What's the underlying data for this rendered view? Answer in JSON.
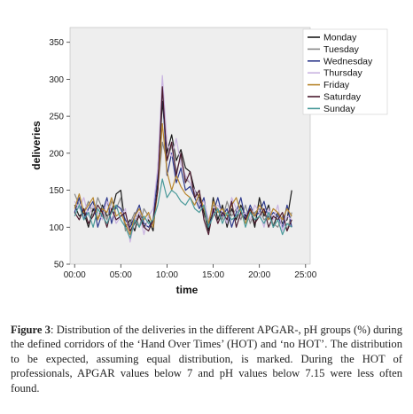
{
  "chart_data": {
    "type": "line",
    "xlabel": "time",
    "ylabel": "deliveries",
    "x_ticks": [
      "00:00",
      "05:00",
      "10:00",
      "15:00",
      "20:00",
      "25:00"
    ],
    "y_ticks": [
      "50",
      "100",
      "150",
      "200",
      "250",
      "300",
      "350"
    ],
    "ylim": [
      50,
      370
    ],
    "xlim": [
      -0.5,
      25.5
    ],
    "legend_position": "right",
    "grid": false,
    "x": [
      0,
      0.5,
      1,
      1.5,
      2,
      2.5,
      3,
      3.5,
      4,
      4.5,
      5,
      5.5,
      6,
      6.5,
      7,
      7.5,
      8,
      8.5,
      9,
      9.5,
      10,
      10.5,
      11,
      11.5,
      12,
      12.5,
      13,
      13.5,
      14,
      14.5,
      15,
      15.5,
      16,
      16.5,
      17,
      17.5,
      18,
      18.5,
      19,
      19.5,
      20,
      20.5,
      21,
      21.5,
      22,
      22.5,
      23,
      23.5
    ],
    "series": [
      {
        "name": "Monday",
        "color": "#1a1a1a",
        "values": [
          130,
          115,
          120,
          100,
          125,
          110,
          130,
          115,
          120,
          145,
          150,
          100,
          110,
          95,
          120,
          100,
          110,
          95,
          160,
          270,
          200,
          225,
          190,
          205,
          180,
          175,
          150,
          140,
          120,
          95,
          140,
          110,
          130,
          100,
          125,
          110,
          130,
          115,
          125,
          100,
          140,
          115,
          130,
          100,
          120,
          105,
          110,
          150
        ]
      },
      {
        "name": "Tuesday",
        "color": "#888888",
        "values": [
          145,
          130,
          120,
          135,
          115,
          140,
          125,
          110,
          135,
          125,
          140,
          95,
          105,
          120,
          100,
          125,
          115,
          105,
          150,
          215,
          190,
          210,
          175,
          195,
          165,
          160,
          145,
          135,
          115,
          105,
          130,
          125,
          110,
          135,
          115,
          125,
          110,
          130,
          105,
          120,
          125,
          110,
          115,
          105,
          100,
          115,
          95,
          120
        ]
      },
      {
        "name": "Wednesday",
        "color": "#2e3a8c",
        "values": [
          120,
          140,
          110,
          125,
          135,
          100,
          120,
          140,
          105,
          130,
          125,
          110,
          100,
          115,
          130,
          105,
          100,
          110,
          175,
          290,
          170,
          200,
          160,
          180,
          150,
          155,
          140,
          125,
          140,
          100,
          120,
          140,
          115,
          125,
          100,
          120,
          140,
          110,
          130,
          115,
          120,
          135,
          110,
          120,
          115,
          100,
          130,
          100
        ]
      },
      {
        "name": "Thursday",
        "color": "#c9b3e0",
        "values": [
          135,
          125,
          140,
          115,
          130,
          120,
          110,
          135,
          125,
          105,
          115,
          125,
          80,
          110,
          120,
          90,
          115,
          125,
          180,
          305,
          215,
          195,
          220,
          185,
          170,
          160,
          150,
          130,
          135,
          110,
          125,
          130,
          120,
          105,
          140,
          125,
          115,
          120,
          110,
          130,
          120,
          100,
          125,
          110,
          130,
          95,
          115,
          110
        ]
      },
      {
        "name": "Friday",
        "color": "#b8862e",
        "values": [
          125,
          145,
          120,
          130,
          140,
          110,
          125,
          120,
          140,
          115,
          120,
          105,
          90,
          115,
          125,
          110,
          120,
          100,
          150,
          240,
          175,
          150,
          170,
          155,
          145,
          140,
          130,
          145,
          125,
          105,
          135,
          120,
          125,
          115,
          130,
          140,
          120,
          105,
          125,
          115,
          130,
          120,
          110,
          125,
          120,
          110,
          125,
          115
        ]
      },
      {
        "name": "Saturday",
        "color": "#4a1a2e",
        "values": [
          120,
          110,
          125,
          105,
          115,
          130,
          120,
          100,
          125,
          110,
          115,
          120,
          95,
          105,
          115,
          100,
          95,
          110,
          150,
          290,
          190,
          215,
          170,
          200,
          160,
          175,
          140,
          150,
          110,
          90,
          125,
          105,
          120,
          110,
          135,
          100,
          120,
          110,
          125,
          105,
          115,
          125,
          100,
          115,
          110,
          120,
          95,
          110
        ]
      },
      {
        "name": "Sunday",
        "color": "#4a9a9a",
        "values": [
          115,
          130,
          110,
          120,
          100,
          125,
          115,
          105,
          120,
          130,
          110,
          100,
          85,
          110,
          100,
          115,
          105,
          110,
          130,
          165,
          140,
          150,
          145,
          135,
          130,
          140,
          125,
          120,
          130,
          100,
          115,
          125,
          105,
          120,
          110,
          115,
          125,
          100,
          120,
          110,
          115,
          105,
          120,
          100,
          110,
          90,
          105,
          100
        ]
      }
    ]
  },
  "caption": {
    "label": "Figure 3",
    "text": ": Distribution of the deliveries in the different APGAR-, pH groups (%) during the defined corridors of the ‘Hand Over Times’ (HOT) and ‘no HOT’. The distribution to be expected, assuming equal distribution, is marked. During the HOT of professionals, APGAR values below 7 and pH values below 7.15 were less often found."
  }
}
